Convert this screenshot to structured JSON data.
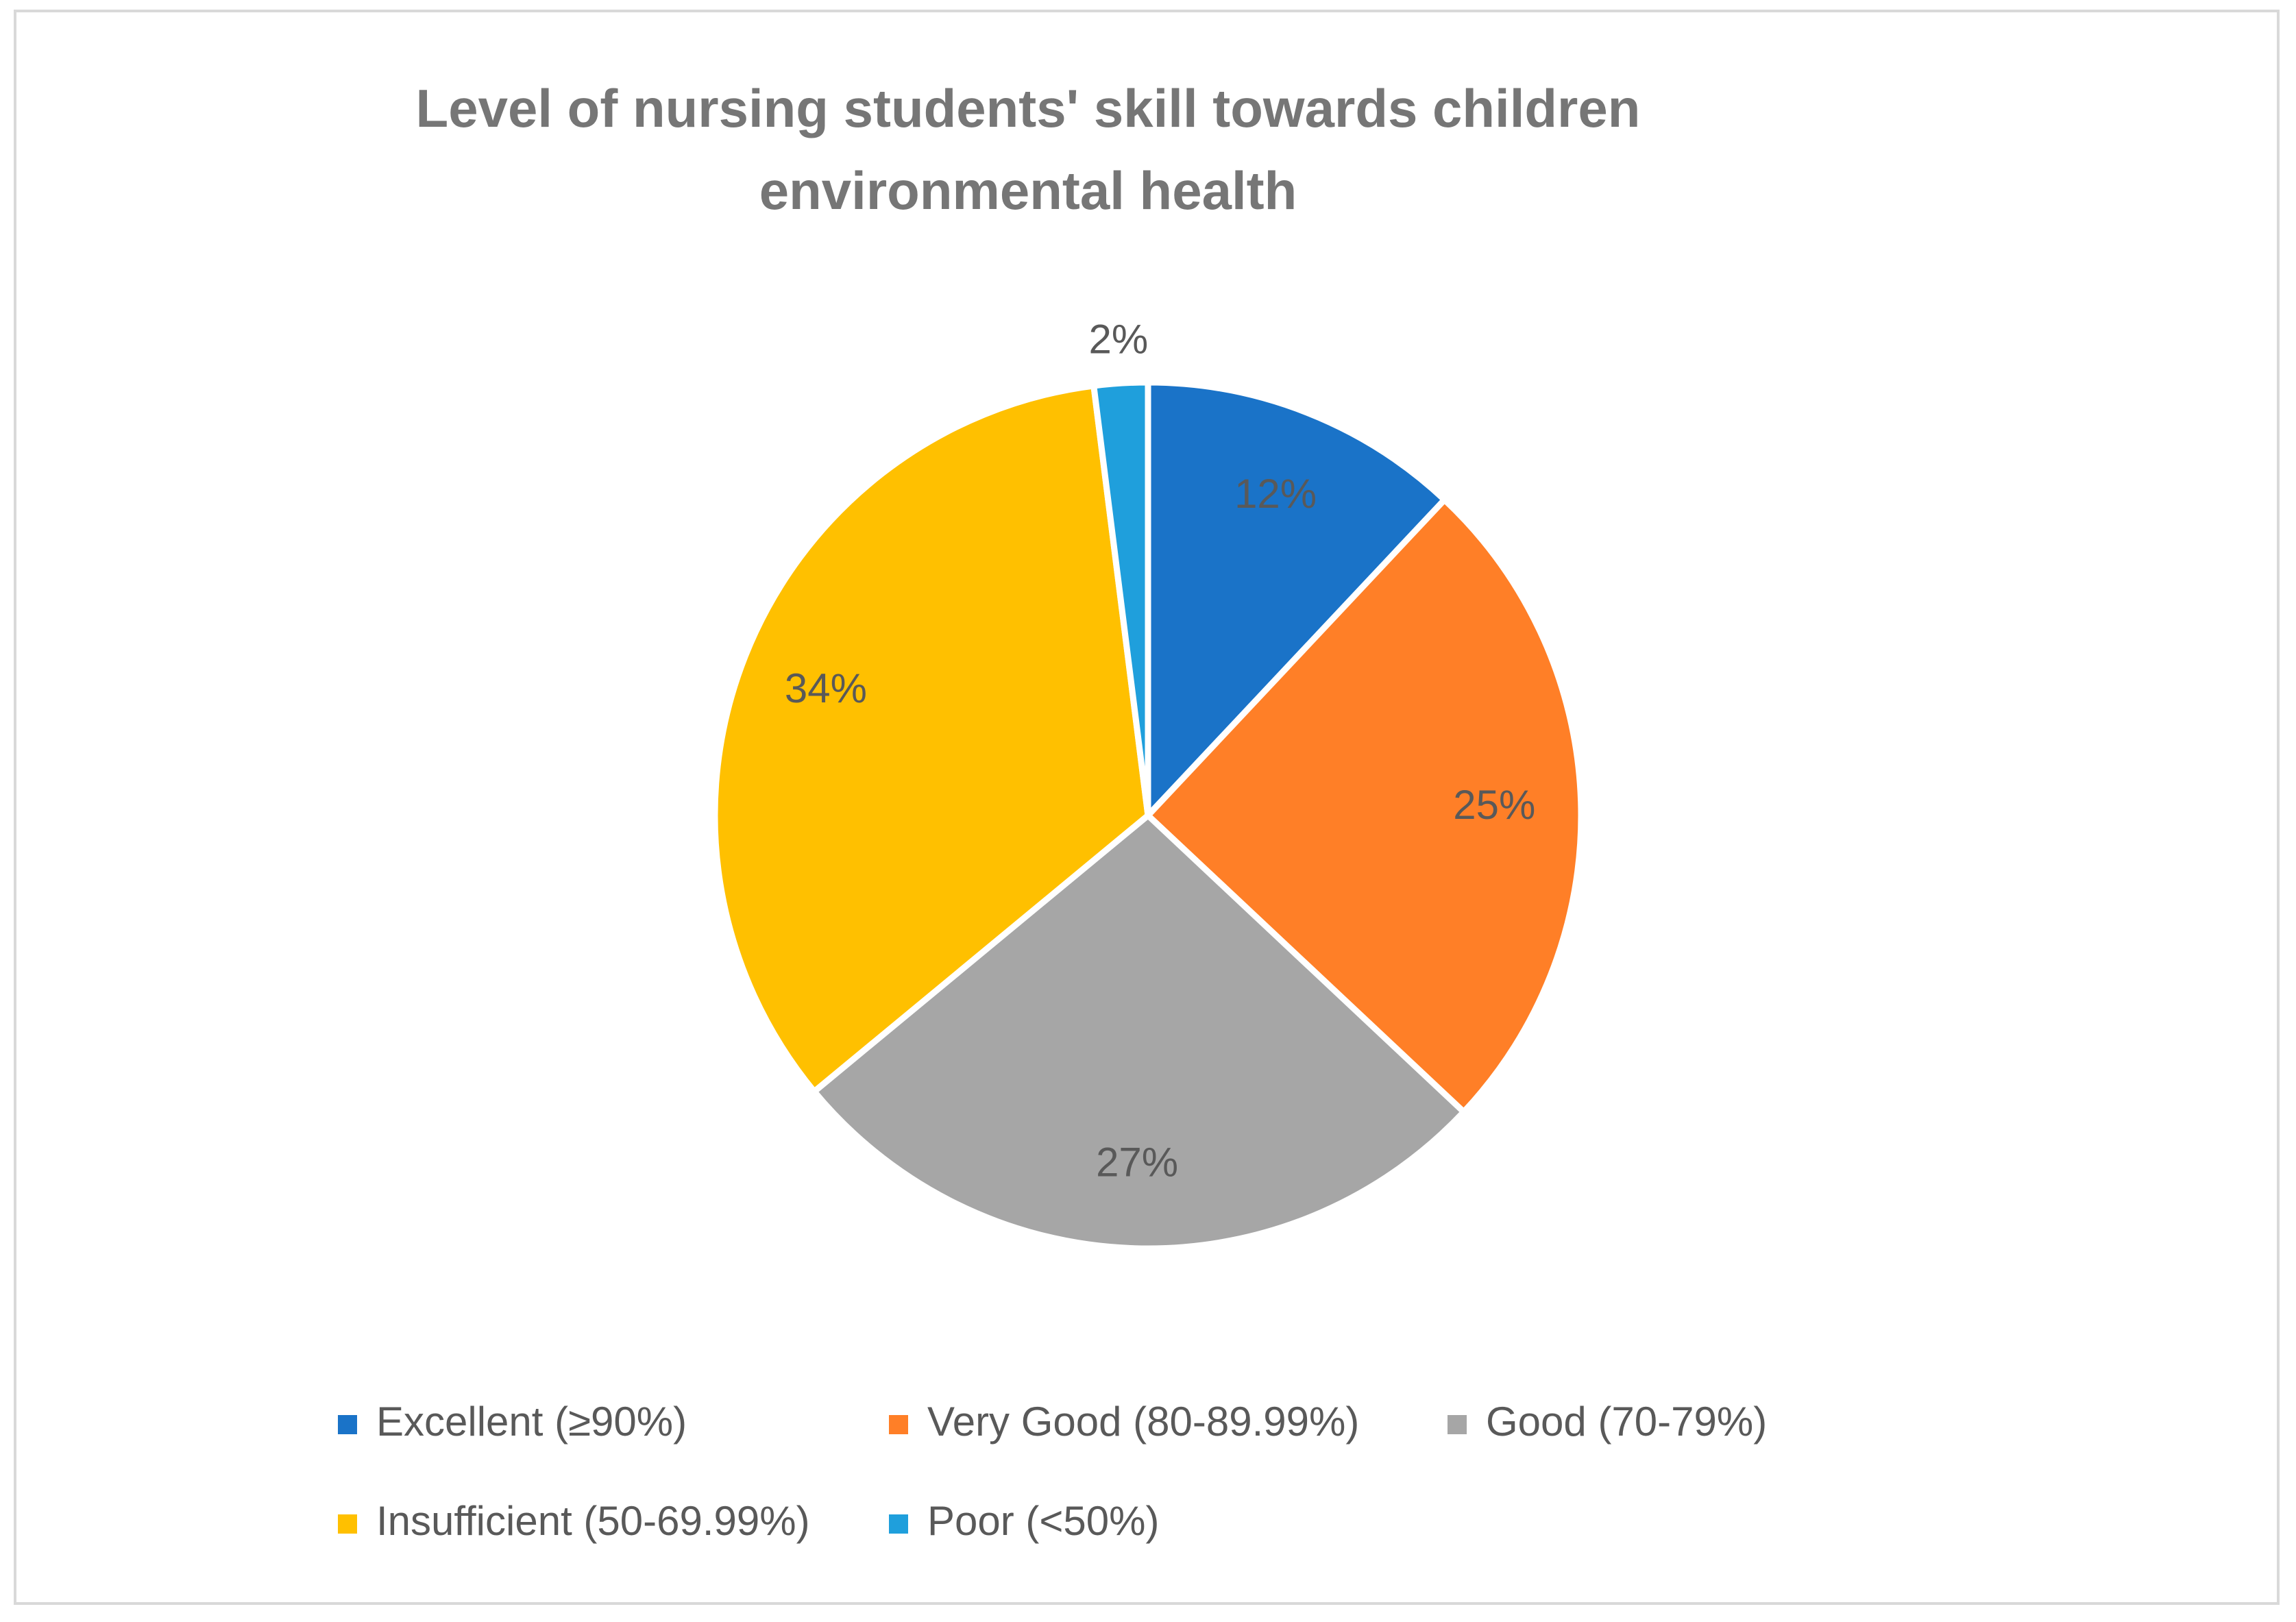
{
  "chart_data": {
    "type": "pie",
    "title_lines": [
      "Level of nursing students' skill towards children",
      "environmental health"
    ],
    "categories": [
      "Excellent (≥90%)",
      "Very Good (80-89.99%)",
      "Good (70-79%)",
      "Insufficient (50-69.99%)",
      "Poor (<50%)"
    ],
    "values": [
      12,
      25,
      27,
      34,
      2
    ],
    "data_labels": [
      "12%",
      "25%",
      "27%",
      "34%",
      "2%"
    ],
    "colors": [
      "#1a73c8",
      "#ff7f27",
      "#a6a6a6",
      "#ffc000",
      "#1f9fdc"
    ],
    "label_colors": [
      "#595959",
      "#595959",
      "#595959",
      "#595959",
      "#595959"
    ],
    "legend_position": "bottom",
    "start_angle": "12 o'clock, clockwise"
  }
}
